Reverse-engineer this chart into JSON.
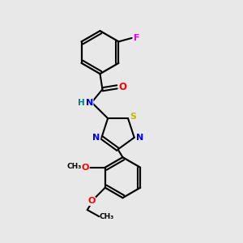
{
  "background_color": "#e8e8e8",
  "bond_color": "#000000",
  "atom_colors": {
    "F": "#ee00ee",
    "O": "#ff0000",
    "N": "#0000ff",
    "S": "#bbbb00",
    "H": "#008080",
    "C": "#000000"
  },
  "figsize": [
    3.0,
    3.0
  ],
  "dpi": 100,
  "xlim": [
    0,
    10
  ],
  "ylim": [
    0,
    10
  ]
}
